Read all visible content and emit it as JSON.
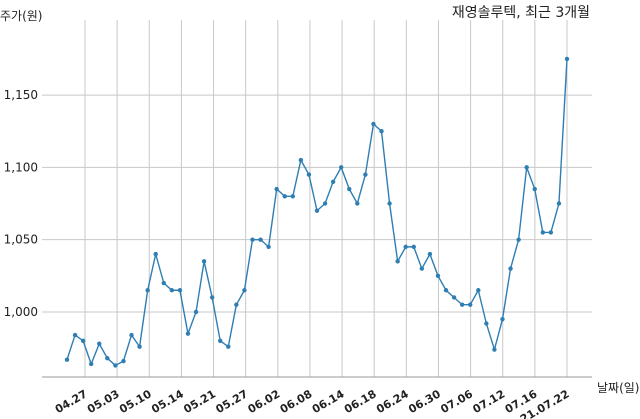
{
  "chart_data": {
    "type": "line",
    "title": "재영솔루텍, 최근 3개월",
    "ylabel": "주가(원)",
    "xlabel": "날짜(일)",
    "ylim": [
      955,
      1195
    ],
    "y_ticks": [
      1000,
      1050,
      1100,
      1150
    ],
    "y_tick_labels": [
      "1,000",
      "1,050",
      "1,100",
      "1,150"
    ],
    "x_ticks": [
      "04.27",
      "05.03",
      "05.10",
      "05.14",
      "05.21",
      "05.27",
      "06.02",
      "06.08",
      "06.14",
      "06.18",
      "06.24",
      "06.30",
      "07.06",
      "07.12",
      "07.16",
      "21.07.22"
    ],
    "grid": true,
    "color": "#2e7eb3",
    "series": [
      {
        "values": [
          967,
          984,
          980,
          964,
          978,
          968,
          963,
          966,
          984,
          976,
          1015,
          1040,
          1020,
          1015,
          1015,
          985,
          1000,
          1035,
          1010,
          980,
          976,
          1005,
          1015,
          1050,
          1050,
          1045,
          1085,
          1080,
          1080,
          1105,
          1095,
          1070,
          1075,
          1090,
          1100,
          1085,
          1075,
          1095,
          1130,
          1125,
          1075,
          1035,
          1045,
          1045,
          1030,
          1040,
          1025,
          1015,
          1010,
          1005,
          1005,
          1015,
          992,
          974,
          995,
          1030,
          1050,
          1100,
          1085,
          1055,
          1055,
          1075,
          1175
        ]
      }
    ]
  }
}
